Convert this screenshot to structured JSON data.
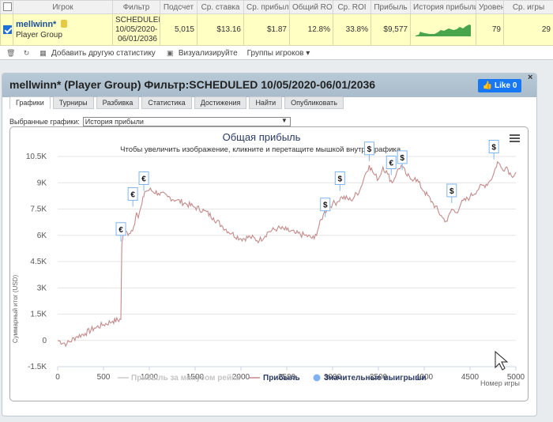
{
  "table": {
    "headers": [
      "Игрок",
      "Фильтр",
      "Подсчет",
      "Ср. ставка",
      "Ср. прибыль",
      "Общий ROI",
      "Ср. ROI",
      "Прибыль",
      "История прибыли",
      "Уровен",
      "Ср. игры"
    ],
    "row": {
      "player_name": "mellwinn*",
      "player_group": "Player Group",
      "filter_line1": "SCHEDULED",
      "filter_line2": "10/05/2020-",
      "filter_line3": "06/01/2036",
      "count": "5,015",
      "avg_stake": "$13.16",
      "avg_profit": "$1.87",
      "total_roi": "12.8%",
      "avg_roi": "33.8%",
      "profit": "$9,577",
      "level": "79",
      "avg_games": "29"
    }
  },
  "toolbar": {
    "add_stats": "Добавить другую статистику",
    "visualize": "Визуализируйте",
    "player_groups": "Группы игроков"
  },
  "dialog": {
    "title": "mellwinn* (Player Group) Фильтр:SCHEDULED 10/05/2020-06/01/2036",
    "fb_label": "Like 0",
    "close": "×",
    "tabs": [
      "Графики",
      "Турниры",
      "Разбивка",
      "Статистика",
      "Достижения",
      "Найти",
      "Опубликовать"
    ],
    "select_label": "Выбранные графики:",
    "select_value": "История прибыли"
  },
  "colors": {
    "profit_line": "#c48a8a",
    "row_highlight": "#ffffc4",
    "fb_blue": "#1877f2",
    "dialog_header": "#b0c2d0"
  },
  "chart_data": {
    "type": "line",
    "title": "Общая прибыль",
    "subtitle": "Чтобы увеличить изображение, кликните и перетащите мышкой внутрь графика.",
    "xlabel": "Номер игры",
    "ylabel": "Суммарный итог (USD)",
    "xlim": [
      0,
      5000
    ],
    "ylim": [
      -1500,
      10500
    ],
    "xticks": [
      0,
      500,
      1000,
      1500,
      2000,
      2500,
      3000,
      3500,
      4000,
      4500,
      5000
    ],
    "yticks": [
      -1500,
      0,
      1500,
      3000,
      4500,
      6000,
      7500,
      9000,
      10500
    ],
    "ytick_labels": [
      "-1.5K",
      "0",
      "1.5K",
      "3K",
      "4.5K",
      "6K",
      "7.5K",
      "9K",
      "10.5K"
    ],
    "legend": [
      "Прибыль за минусом рейка",
      "Прибыль",
      "Значительные выигрыши"
    ],
    "series": [
      {
        "name": "Прибыль",
        "x": [
          0,
          100,
          200,
          300,
          400,
          500,
          600,
          690,
          700,
          720,
          780,
          830,
          860,
          880,
          920,
          950,
          1000,
          1100,
          1200,
          1300,
          1400,
          1500,
          1600,
          1700,
          1800,
          1900,
          2000,
          2100,
          2200,
          2300,
          2400,
          2500,
          2600,
          2700,
          2800,
          2900,
          2950,
          3000,
          3050,
          3100,
          3200,
          3300,
          3350,
          3400,
          3450,
          3500,
          3550,
          3600,
          3650,
          3700,
          3750,
          3800,
          3850,
          3900,
          4000,
          4100,
          4200,
          4250,
          4300,
          4350,
          4400,
          4500,
          4600,
          4700,
          4750,
          4800,
          4850,
          4900,
          4950,
          5000
        ],
        "y": [
          0,
          -200,
          200,
          400,
          700,
          900,
          1100,
          1200,
          5500,
          6200,
          6100,
          6500,
          7300,
          7000,
          7800,
          8500,
          8600,
          8400,
          8200,
          8000,
          7800,
          7600,
          7400,
          7000,
          6500,
          6100,
          5800,
          5900,
          5700,
          6200,
          6400,
          6300,
          6100,
          6000,
          5800,
          7200,
          7600,
          7800,
          7900,
          8200,
          8000,
          8600,
          9400,
          10000,
          9500,
          9200,
          9900,
          9500,
          9000,
          9600,
          10000,
          9500,
          9200,
          9300,
          8500,
          7800,
          7000,
          6800,
          7500,
          7300,
          7800,
          8200,
          8700,
          9000,
          9400,
          10200,
          9800,
          9900,
          9400,
          9600
        ]
      }
    ],
    "markers": [
      {
        "x": 690,
        "y": 6000,
        "symbol": "€"
      },
      {
        "x": 820,
        "y": 8000,
        "symbol": "€"
      },
      {
        "x": 940,
        "y": 8900,
        "symbol": "€"
      },
      {
        "x": 2920,
        "y": 7400,
        "symbol": "$"
      },
      {
        "x": 3080,
        "y": 8900,
        "symbol": "$"
      },
      {
        "x": 3400,
        "y": 10600,
        "symbol": "$"
      },
      {
        "x": 3640,
        "y": 9800,
        "symbol": "€"
      },
      {
        "x": 3760,
        "y": 10100,
        "symbol": "$"
      },
      {
        "x": 4300,
        "y": 8200,
        "symbol": "$"
      },
      {
        "x": 4760,
        "y": 10700,
        "symbol": "$"
      }
    ]
  }
}
